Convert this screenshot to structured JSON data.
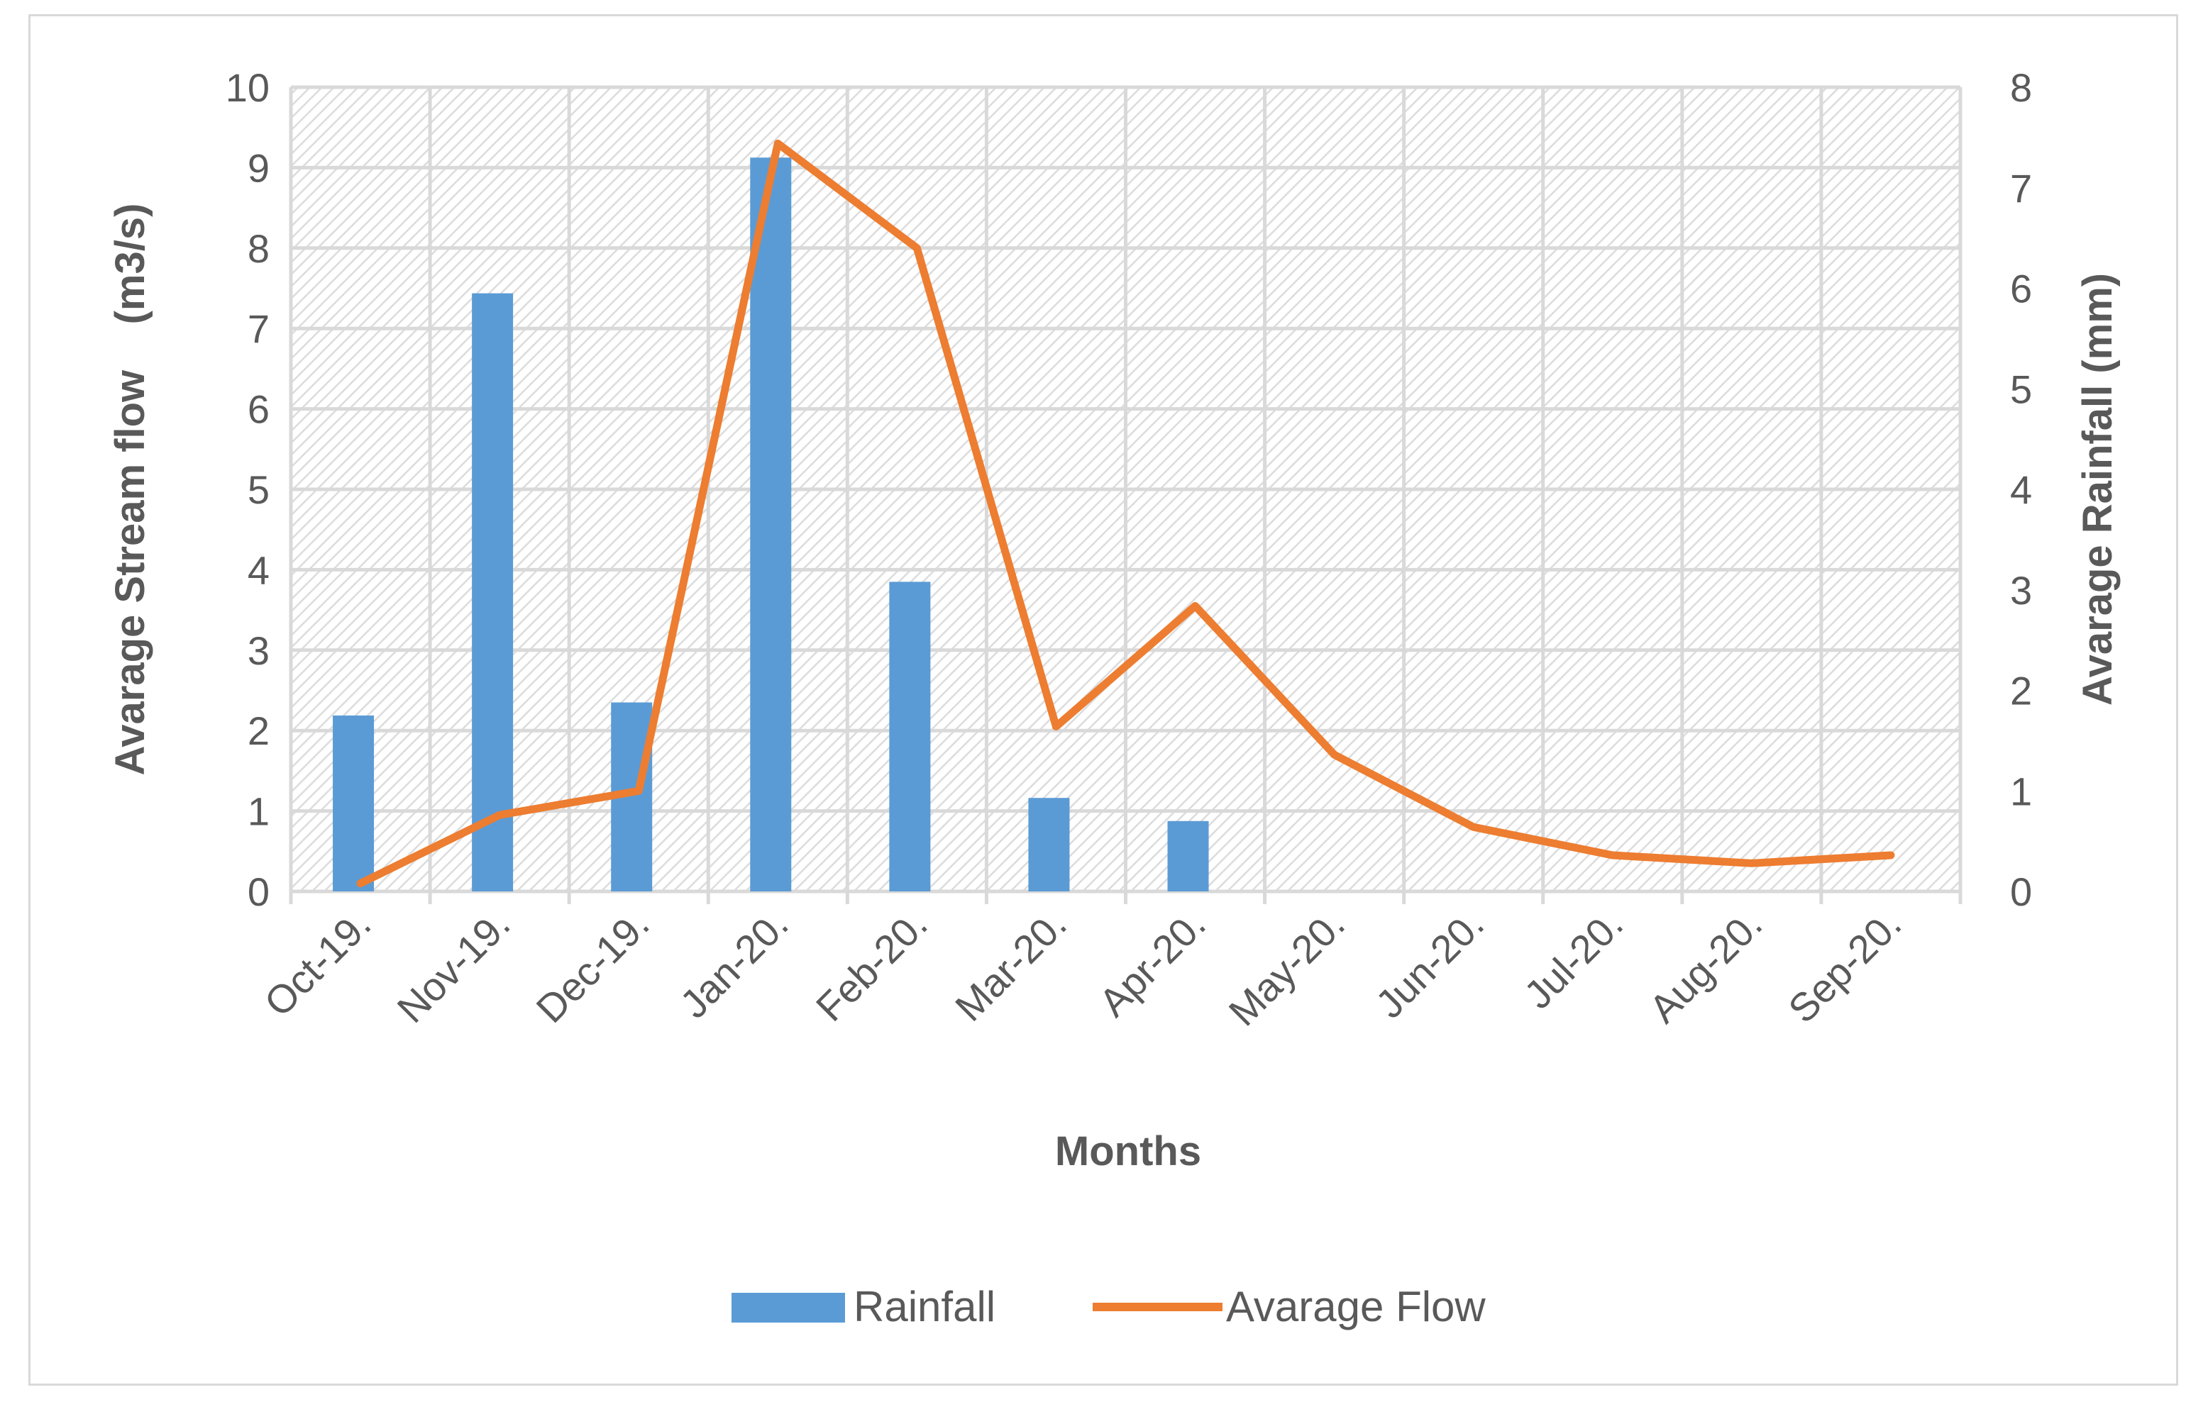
{
  "chart_data": {
    "type": "bar",
    "categories": [
      "Oct-19.",
      "Nov-19.",
      "Dec-19.",
      "Jan-20.",
      "Feb-20.",
      "Mar-20.",
      "Apr-20.",
      "May-20.",
      "Jun-20.",
      "Jul-20.",
      "Aug-20.",
      "Sep-20."
    ],
    "series": [
      {
        "name": "Rainfall",
        "chart_type": "bar",
        "axis": "right",
        "color": "#5b9bd5",
        "values": [
          1.75,
          5.95,
          1.88,
          7.3,
          3.08,
          0.93,
          0.7,
          0,
          0,
          0,
          0,
          0
        ]
      },
      {
        "name": "Avarage Flow",
        "chart_type": "line",
        "axis": "left",
        "color": "#ed7d31",
        "values": [
          0.1,
          0.95,
          1.25,
          9.3,
          8.0,
          2.05,
          3.55,
          1.7,
          0.8,
          0.45,
          0.35,
          0.45
        ]
      }
    ],
    "title": "",
    "xlabel": "Months",
    "ylabel": "Avarage Stream flow    (m3/s)",
    "y2label": "Avarage Rainfall (mm)",
    "ylim": [
      0,
      10
    ],
    "y2lim": [
      0,
      8
    ],
    "yticks": [
      "0",
      "1",
      "2",
      "3",
      "4",
      "5",
      "6",
      "7",
      "8",
      "9",
      "10"
    ],
    "y2ticks": [
      "0",
      "1",
      "2",
      "3",
      "4",
      "5",
      "6",
      "7",
      "8"
    ],
    "grid": true,
    "legend": "bottom"
  }
}
